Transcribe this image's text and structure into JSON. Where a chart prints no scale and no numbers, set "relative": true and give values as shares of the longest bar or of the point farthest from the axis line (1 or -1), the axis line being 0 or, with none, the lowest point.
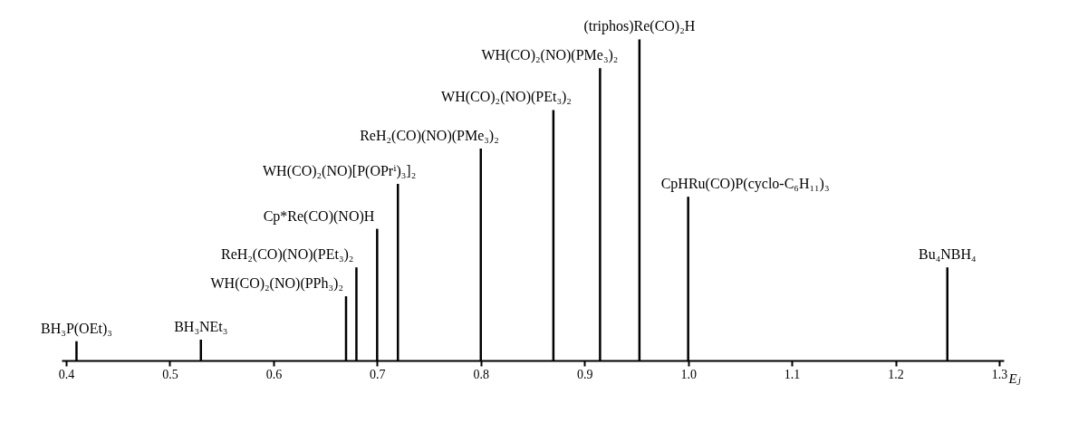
{
  "chart_data": {
    "type": "bar",
    "relative": true,
    "color": "#000000",
    "xlabel": "Eⱼ",
    "x": [
      0.41,
      0.53,
      0.67,
      0.68,
      0.7,
      0.72,
      0.8,
      0.87,
      0.915,
      0.953,
      1.0,
      1.25
    ],
    "values": [
      0.06,
      0.065,
      0.2,
      0.29,
      0.41,
      0.55,
      0.66,
      0.78,
      0.91,
      1,
      0.51,
      0.29
    ],
    "xlim": [
      0.4,
      1.3
    ],
    "xticks": [
      0.4,
      0.5,
      0.6,
      0.7,
      0.8,
      0.9,
      {
        "value": 1,
        "label": "1.0"
      },
      1.1,
      1.2,
      1.3
    ],
    "annotations": [
      {
        "text": "BH₃P(OEt)₃",
        "x": 0.41,
        "y": 0.06
      },
      {
        "text": "BH₃NEt₃",
        "x": 0.53,
        "y": 0.065
      },
      {
        "text": "WH(CO)₂(NO)(PPh₃)₂",
        "x": 0.67,
        "y": 0.2
      },
      {
        "text": "ReH₂(CO)(NO)(PEt₃)₂",
        "x": 0.68,
        "y": 0.29
      },
      {
        "text": "Cp*Re(CO)(NO)H",
        "x": 0.7,
        "y": 0.41
      },
      {
        "text": "WH(CO)₂(NO)[P(OPrⁱ)₃]₂",
        "x": 0.72,
        "y": 0.55
      },
      {
        "text": "ReH₂(CO)(NO)(PMe₃)₂",
        "x": 0.8,
        "y": 0.66
      },
      {
        "text": "WH(CO)₂(NO)(PEt₃)₂",
        "x": 0.87,
        "y": 0.78
      },
      {
        "text": "WH(CO)₂(NO)(PMe₃)₂",
        "x": 0.915,
        "y": 0.91
      },
      {
        "text": "(triphos)Re(CO)₂H",
        "x": 0.953,
        "y": 1
      },
      {
        "text": "CpHRu(CO)P(cyclo-C₆H₁₁)₃",
        "x": 1.0,
        "y": 0.51
      },
      {
        "text": "Bu₄NBH₄",
        "x": 1.25,
        "y": 0.29
      }
    ]
  }
}
